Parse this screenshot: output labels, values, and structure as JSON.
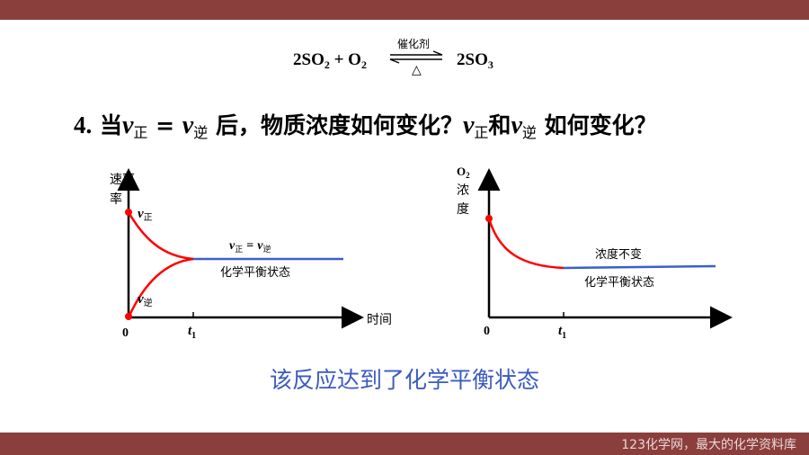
{
  "footer": "123化学网，最大的化学资料库",
  "equation": {
    "left": "2SO",
    "sub1": "2",
    "plus": " + O",
    "sub2": "2",
    "catalyst": "催化剂",
    "heat": "△",
    "right": "2SO",
    "sub3": "3"
  },
  "question": {
    "number": "4.",
    "p1": "当",
    "v": "v",
    "sub_forward": "正",
    "eq": " = ",
    "sub_reverse": "逆",
    "p2": " 后，物质浓度如何变化？",
    "p3": "和",
    "p4": " 如何变化？"
  },
  "chart_left": {
    "ylabel": "速率",
    "xlabel": "时间",
    "origin": "0",
    "t": "t",
    "t_sub": "1",
    "v": "v",
    "forward": "正",
    "reverse": "逆",
    "equal": "=",
    "state": "化学平衡状态"
  },
  "chart_right": {
    "ylabel_formula": "O",
    "ylabel_sub": "2",
    "ylabel_text1": "浓",
    "ylabel_text2": "度",
    "origin": "0",
    "t": "t",
    "t_sub": "1",
    "constant": "浓度不变",
    "state": "化学平衡状态"
  },
  "conclusion": "该反应达到了化学平衡状态",
  "colors": {
    "curve": "#ff0000",
    "equilibrium": "#3a5fcd",
    "banner": "#8a3f3d",
    "conclusion": "#3b5bbf"
  }
}
